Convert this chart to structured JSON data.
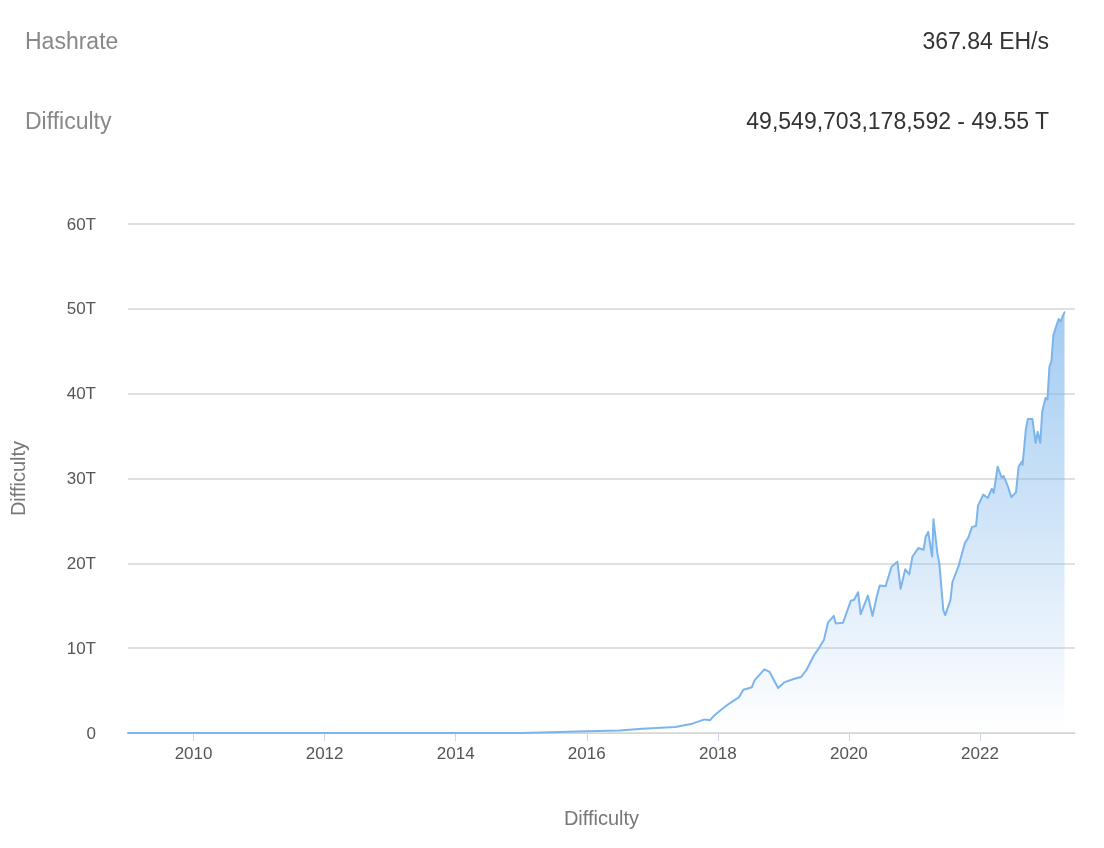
{
  "chart_data": {
    "type": "area",
    "xlabel": "Difficulty",
    "ylabel": "Difficulty",
    "annotations": [
      "Hashrate",
      "367.84 EH/s",
      "Difficulty",
      "49,549,703,178,592 - 49.55 T"
    ],
    "series": [
      {
        "color": "#7cb5ec",
        "x": [
          2009.0,
          2012.0,
          2014.0,
          2015.0,
          2016.0,
          2016.5,
          2016.85,
          2017.35,
          2017.61,
          2017.8,
          2017.88,
          2017.95,
          2018.06,
          2018.18,
          2018.32,
          2018.39,
          2018.52,
          2018.56,
          2018.71,
          2018.79,
          2018.92,
          2019.02,
          2019.17,
          2019.27,
          2019.35,
          2019.47,
          2019.55,
          2019.62,
          2019.68,
          2019.77,
          2019.8,
          2019.91,
          2020.03,
          2020.08,
          2020.14,
          2020.18,
          2020.29,
          2020.36,
          2020.42,
          2020.47,
          2020.56,
          2020.65,
          2020.74,
          2020.79,
          2020.86,
          2020.92,
          2020.97,
          2021.06,
          2021.14,
          2021.17,
          2021.21,
          2021.27,
          2021.29,
          2021.35,
          2021.38,
          2021.44,
          2021.47,
          2021.55,
          2021.58,
          2021.67,
          2021.77,
          2021.82,
          2021.88,
          2021.94,
          2021.97,
          2022.05,
          2022.12,
          2022.18,
          2022.21,
          2022.27,
          2022.33,
          2022.36,
          2022.42,
          2022.48,
          2022.55,
          2022.59,
          2022.64,
          2022.65,
          2022.7,
          2022.73,
          2022.8,
          2022.85,
          2022.88,
          2022.92,
          2022.95,
          2023.0,
          2023.03,
          2023.06,
          2023.09,
          2023.12,
          2023.17,
          2023.2,
          2023.23,
          2023.26,
          2023.29
        ],
        "values": [
          0,
          0,
          0,
          0,
          0.2,
          0.3,
          0.5,
          0.7,
          1.1,
          1.6,
          1.5,
          2.1,
          2.8,
          3.5,
          4.2,
          5.1,
          5.4,
          6.2,
          7.5,
          7.2,
          5.3,
          6.0,
          6.4,
          6.6,
          7.4,
          9.2,
          10.1,
          11.0,
          13.0,
          13.8,
          12.9,
          13.0,
          15.6,
          15.7,
          16.6,
          14.0,
          16.2,
          13.8,
          15.9,
          17.4,
          17.3,
          19.6,
          20.2,
          17.0,
          19.3,
          18.7,
          20.8,
          21.8,
          21.6,
          23.1,
          23.7,
          20.8,
          25.2,
          21.2,
          20.0,
          14.5,
          13.9,
          15.7,
          17.8,
          19.6,
          22.4,
          23.0,
          24.3,
          24.4,
          26.8,
          28.1,
          27.7,
          28.8,
          28.3,
          31.4,
          30.1,
          30.3,
          29.2,
          27.8,
          28.4,
          31.4,
          32.0,
          31.6,
          35.8,
          37.0,
          37.0,
          34.2,
          35.5,
          34.2,
          37.9,
          39.5,
          39.3,
          43.2,
          43.8,
          46.9,
          48.1,
          48.8,
          48.5,
          49.1,
          49.6
        ]
      }
    ],
    "xlim": [
      2009,
      2023.45
    ],
    "xticks": [
      2010,
      2012,
      2014,
      2016,
      2018,
      2020,
      2022
    ],
    "ylim": [
      0,
      60
    ],
    "yticks": [
      0,
      {
        "value": 10,
        "label": "10T"
      },
      {
        "value": 20,
        "label": "20T"
      },
      {
        "value": 30,
        "label": "30T"
      },
      {
        "value": 40,
        "label": "40T"
      },
      {
        "value": 50,
        "label": "50T"
      },
      {
        "value": 60,
        "label": "60T"
      }
    ],
    "grid": "y",
    "marker": "none",
    "line_style": "solid"
  }
}
